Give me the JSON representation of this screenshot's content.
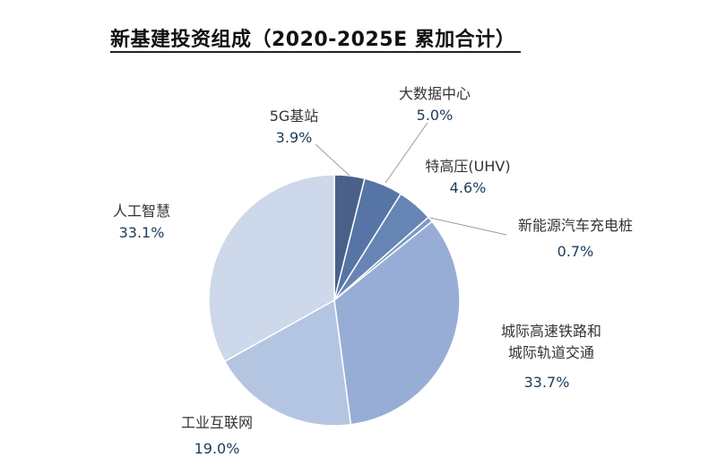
{
  "chart_data": {
    "type": "pie",
    "title": "新基建投资组成（2020-2025E  累加合计）",
    "start_angle": "12 o'clock",
    "direction": "clockwise",
    "slices": [
      {
        "label": "5G基站",
        "value": 3.9,
        "pct_label": "3.9%",
        "color": "#4b6088"
      },
      {
        "label": "大数据中心",
        "value": 5.0,
        "pct_label": "5.0%",
        "color": "#5774a6"
      },
      {
        "label": "特高压(UHV)",
        "value": 4.6,
        "pct_label": "4.6%",
        "color": "#6685b4"
      },
      {
        "label": "新能源汽车充电桩",
        "value": 0.7,
        "pct_label": "0.7%",
        "color": "#7e99c4"
      },
      {
        "label": "城际高速铁路和城际轨道交通",
        "label_lines": [
          "城际高速铁路和",
          "城际轨道交通"
        ],
        "value": 33.7,
        "pct_label": "33.7%",
        "color": "#98add5"
      },
      {
        "label": "工业互联网",
        "value": 19.0,
        "pct_label": "19.0%",
        "color": "#b4c5e1"
      },
      {
        "label": "人工智慧",
        "value": 33.1,
        "pct_label": "33.1%",
        "color": "#cdd8ea"
      }
    ]
  }
}
